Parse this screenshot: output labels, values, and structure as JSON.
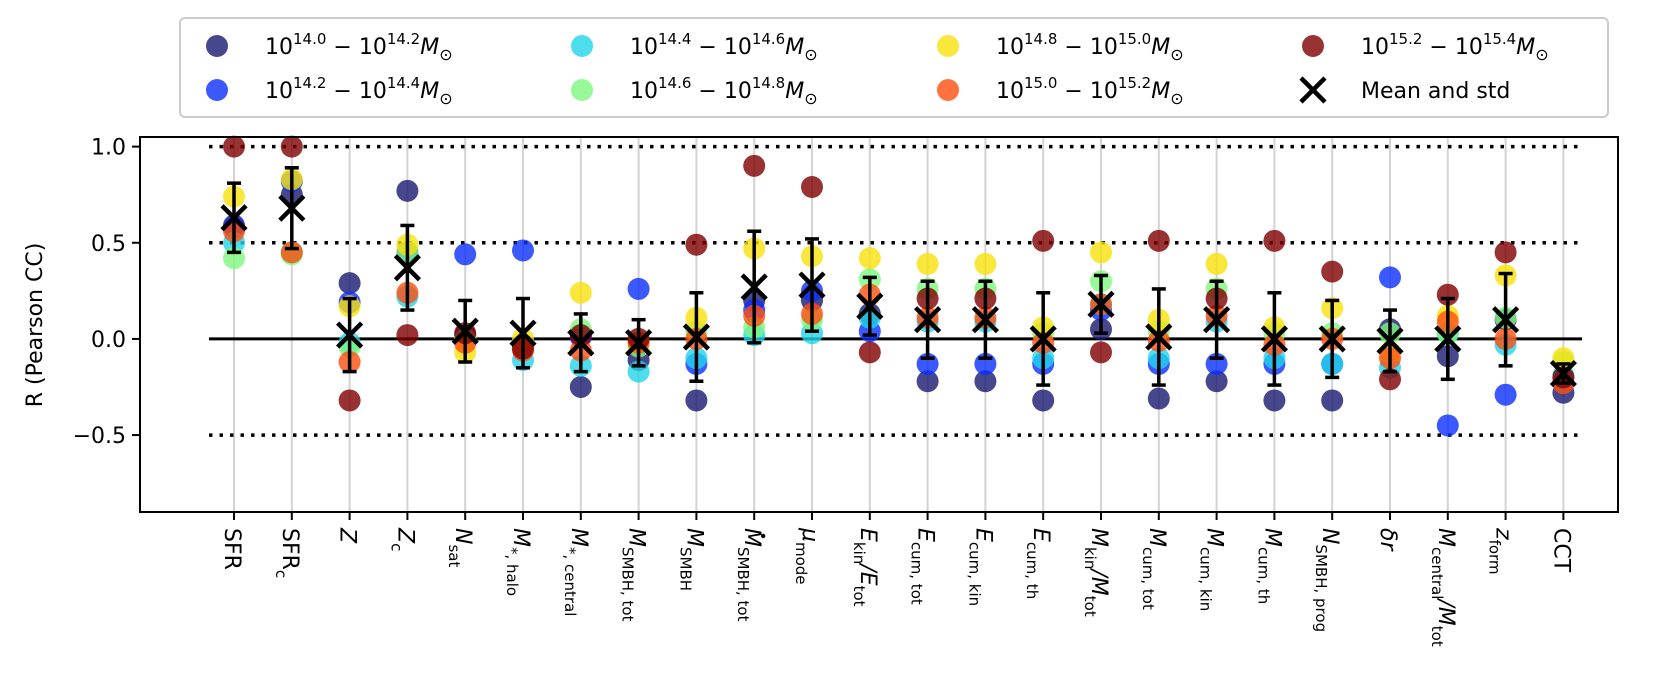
{
  "chart_data": {
    "type": "scatter",
    "ylabel": "R (Pearson CC)",
    "ylim": [
      -0.9,
      1.05
    ],
    "yticks": [
      {
        "value": 1.0,
        "label": "1.0"
      },
      {
        "value": 0.5,
        "label": "0.5"
      },
      {
        "value": 0.0,
        "label": "0.0"
      },
      {
        "value": -0.5,
        "label": "−0.5"
      }
    ],
    "reference_lines": [
      {
        "value": 1.0,
        "style": "dotted"
      },
      {
        "value": 0.5,
        "style": "dotted"
      },
      {
        "value": 0.0,
        "style": "solid"
      },
      {
        "value": -0.5,
        "style": "dotted"
      }
    ],
    "vertical_grid": true,
    "legend_placement": "top, outside plot, 4 columns",
    "categories": [
      {
        "base": "SFR",
        "sub": "",
        "dot": false
      },
      {
        "base": "SFR",
        "sub": "c",
        "dot": false
      },
      {
        "base": "Z",
        "sub": "",
        "dot": false
      },
      {
        "base": "Z",
        "sub": "c",
        "dot": false
      },
      {
        "base": "N",
        "sub": "sat",
        "dot": false
      },
      {
        "base": "M",
        "sub": "*, halo",
        "dot": false
      },
      {
        "base": "M",
        "sub": "*, central",
        "dot": false
      },
      {
        "base": "M",
        "sub": "SMBH, tot",
        "dot": false
      },
      {
        "base": "M",
        "sub": "SMBH",
        "dot": false
      },
      {
        "base": "M",
        "sub": "SMBH, tot",
        "dot": true
      },
      {
        "base": "μ",
        "sub": "mode",
        "dot": false
      },
      {
        "base": "E",
        "sub": "kin",
        "base2": "/E",
        "sub2": "tot",
        "dot": false
      },
      {
        "base": "E",
        "sub": "cum, tot",
        "dot": false
      },
      {
        "base": "E",
        "sub": "cum, kin",
        "dot": false
      },
      {
        "base": "E",
        "sub": "cum, th",
        "dot": false
      },
      {
        "base": "M",
        "sub": "kin",
        "base2": "/M",
        "sub2": "tot",
        "dot": false
      },
      {
        "base": "M",
        "sub": "cum, tot",
        "dot": false
      },
      {
        "base": "M",
        "sub": "cum, kin",
        "dot": false
      },
      {
        "base": "M",
        "sub": "cum, th",
        "dot": false
      },
      {
        "base": "N",
        "sub": "SMBH, prog",
        "dot": false
      },
      {
        "base": "δr",
        "sub": "",
        "dot": false
      },
      {
        "base": "M",
        "sub": "central",
        "base2": "/M",
        "sub2": "tot",
        "dot": false
      },
      {
        "base": "z",
        "sub": "form",
        "dot": false
      },
      {
        "base": "CCT",
        "sub": "",
        "dot": false
      }
    ],
    "series": [
      {
        "name": "10^{14.0} - 10^{14.2} M_⊙",
        "color": "#191970",
        "values": [
          0.59,
          0.75,
          0.29,
          0.77,
          0.02,
          -0.03,
          -0.25,
          -0.11,
          -0.32,
          0.2,
          0.2,
          0.13,
          -0.22,
          -0.22,
          -0.32,
          0.05,
          -0.31,
          -0.22,
          -0.32,
          -0.32,
          0.05,
          -0.09,
          0.1,
          -0.28
        ]
      },
      {
        "name": "10^{14.2} - 10^{14.4} M_⊙",
        "color": "#0b2fff",
        "values": [
          0.58,
          0.82,
          0.19,
          0.45,
          0.44,
          0.46,
          0.01,
          0.26,
          -0.13,
          0.15,
          0.25,
          0.04,
          -0.13,
          -0.13,
          -0.13,
          0.15,
          -0.13,
          -0.13,
          -0.13,
          -0.13,
          0.32,
          -0.45,
          -0.29,
          -0.2
        ]
      },
      {
        "name": "10^{14.4} - 10^{14.6} M_⊙",
        "color": "#21d4e8",
        "values": [
          0.5,
          0.45,
          -0.02,
          0.22,
          0.0,
          -0.11,
          -0.14,
          -0.17,
          -0.1,
          0.02,
          0.03,
          0.11,
          0.09,
          0.09,
          -0.1,
          0.18,
          -0.1,
          0.09,
          -0.1,
          -0.13,
          -0.15,
          0.03,
          -0.03,
          -0.19
        ]
      },
      {
        "name": "10^{14.6} - 10^{14.8} M_⊙",
        "color": "#7df77d",
        "values": [
          0.42,
          0.44,
          -0.04,
          0.45,
          0.0,
          -0.04,
          0.05,
          -0.04,
          0.04,
          0.06,
          0.1,
          0.31,
          0.26,
          0.26,
          0.03,
          0.3,
          0.04,
          0.26,
          0.03,
          0.03,
          0.03,
          0.03,
          0.11,
          -0.12
        ]
      },
      {
        "name": "10^{14.8} - 10^{15.0} M_⊙",
        "color": "#f7e10a",
        "values": [
          0.74,
          0.83,
          0.17,
          0.49,
          -0.07,
          0.0,
          0.24,
          -0.02,
          0.11,
          0.47,
          0.43,
          0.42,
          0.39,
          0.39,
          0.06,
          0.45,
          0.1,
          0.39,
          0.06,
          0.16,
          -0.07,
          0.12,
          0.33,
          -0.1
        ]
      },
      {
        "name": "10^{15.0} - 10^{15.2} M_⊙",
        "color": "#ff4f0f",
        "values": [
          0.56,
          0.45,
          -0.12,
          0.24,
          -0.02,
          -0.06,
          -0.06,
          -0.02,
          0.0,
          0.12,
          0.13,
          0.23,
          0.11,
          0.11,
          -0.02,
          0.18,
          -0.01,
          0.12,
          -0.03,
          0.0,
          -0.1,
          0.09,
          0.0,
          -0.23
        ]
      },
      {
        "name": "10^{15.2} - 10^{15.4} M_⊙",
        "color": "#7f0000",
        "values": [
          1.0,
          1.0,
          -0.32,
          0.02,
          0.03,
          -0.05,
          0.02,
          0.0,
          0.49,
          0.9,
          0.79,
          -0.07,
          0.21,
          0.21,
          0.51,
          -0.07,
          0.51,
          0.21,
          0.51,
          0.35,
          -0.21,
          0.23,
          0.45,
          -0.2
        ]
      }
    ],
    "mean_and_std": {
      "name": "Mean and std",
      "means": [
        0.63,
        0.68,
        0.02,
        0.37,
        0.04,
        0.03,
        -0.02,
        -0.02,
        0.01,
        0.27,
        0.28,
        0.17,
        0.1,
        0.1,
        0.0,
        0.18,
        0.01,
        0.1,
        0.0,
        0.0,
        -0.01,
        0.0,
        0.1,
        -0.18
      ],
      "stds": [
        0.18,
        0.21,
        0.19,
        0.22,
        0.16,
        0.18,
        0.15,
        0.12,
        0.23,
        0.29,
        0.24,
        0.15,
        0.2,
        0.2,
        0.24,
        0.15,
        0.25,
        0.2,
        0.24,
        0.2,
        0.16,
        0.21,
        0.24,
        0.05
      ]
    }
  },
  "legend": {
    "items": [
      {
        "series": 0,
        "base1": "10",
        "exp1": "14.0",
        "base2": "10",
        "exp2": "14.2"
      },
      {
        "series": 2,
        "base1": "10",
        "exp1": "14.4",
        "base2": "10",
        "exp2": "14.6"
      },
      {
        "series": 4,
        "base1": "10",
        "exp1": "14.8",
        "base2": "10",
        "exp2": "15.0"
      },
      {
        "series": 6,
        "base1": "10",
        "exp1": "15.2",
        "base2": "10",
        "exp2": "15.4"
      },
      {
        "series": 1,
        "base1": "10",
        "exp1": "14.2",
        "base2": "10",
        "exp2": "14.4"
      },
      {
        "series": 3,
        "base1": "10",
        "exp1": "14.6",
        "base2": "10",
        "exp2": "14.8"
      },
      {
        "series": 5,
        "base1": "10",
        "exp1": "15.0",
        "base2": "10",
        "exp2": "15.2"
      }
    ],
    "mean_label": "Mean and std"
  }
}
